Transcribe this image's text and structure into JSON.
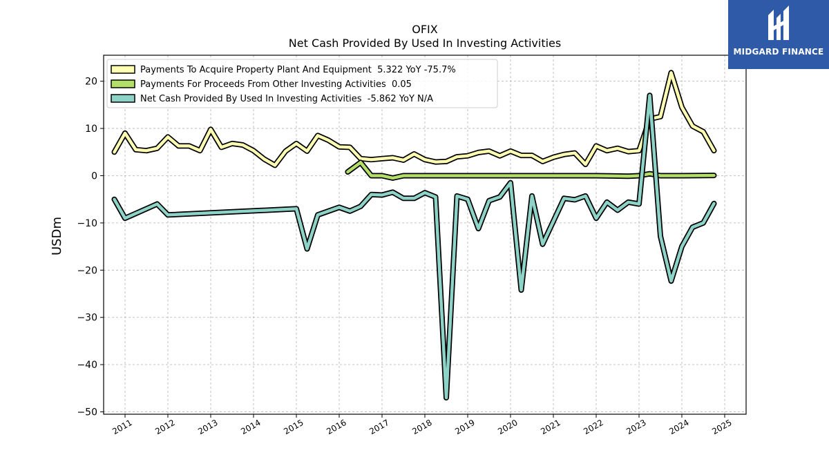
{
  "brand": {
    "name": "MIDGARD FINANCE",
    "bg": "#2e5aa8"
  },
  "chart_data": {
    "type": "line",
    "title": "OFIX",
    "subtitle": "Net Cash Provided By Used In Investing Activities",
    "xlabel": "",
    "ylabel": "USDm",
    "xlim": [
      2010.5,
      2025.5
    ],
    "ylim": [
      -50.5,
      25.5
    ],
    "x_ticks": [
      "2011",
      "2012",
      "2013",
      "2014",
      "2015",
      "2016",
      "2017",
      "2018",
      "2019",
      "2020",
      "2021",
      "2022",
      "2023",
      "2024",
      "2025"
    ],
    "y_ticks": [
      20,
      10,
      0,
      -10,
      -20,
      -30,
      -40,
      -50
    ],
    "grid": true,
    "legend_position": "top-left",
    "series": [
      {
        "name": "Payments To Acquire Property Plant And Equipment  5.322 YoY -75.7%",
        "color": "#ffffb3",
        "points": [
          [
            2010.75,
            5.0
          ],
          [
            2011.0,
            9.0
          ],
          [
            2011.25,
            5.5
          ],
          [
            2011.5,
            5.3
          ],
          [
            2011.75,
            5.8
          ],
          [
            2012.0,
            8.2
          ],
          [
            2012.25,
            6.3
          ],
          [
            2012.5,
            6.3
          ],
          [
            2012.75,
            5.3
          ],
          [
            2013.0,
            9.8
          ],
          [
            2013.25,
            6.0
          ],
          [
            2013.5,
            6.8
          ],
          [
            2013.75,
            6.5
          ],
          [
            2014.0,
            5.3
          ],
          [
            2014.25,
            3.5
          ],
          [
            2014.5,
            2.2
          ],
          [
            2014.75,
            5.2
          ],
          [
            2015.0,
            6.8
          ],
          [
            2015.25,
            5.2
          ],
          [
            2015.5,
            8.5
          ],
          [
            2015.75,
            7.5
          ],
          [
            2016.0,
            6.1
          ],
          [
            2016.25,
            6.0
          ],
          [
            2016.5,
            3.6
          ],
          [
            2016.75,
            3.4
          ],
          [
            2017.0,
            3.6
          ],
          [
            2017.25,
            3.8
          ],
          [
            2017.5,
            3.3
          ],
          [
            2017.75,
            4.6
          ],
          [
            2018.0,
            3.4
          ],
          [
            2018.25,
            2.9
          ],
          [
            2018.5,
            3.0
          ],
          [
            2018.75,
            4.0
          ],
          [
            2019.0,
            4.2
          ],
          [
            2019.25,
            4.9
          ],
          [
            2019.5,
            5.2
          ],
          [
            2019.75,
            4.2
          ],
          [
            2020.0,
            5.2
          ],
          [
            2020.25,
            4.3
          ],
          [
            2020.5,
            4.3
          ],
          [
            2020.75,
            3.0
          ],
          [
            2021.0,
            3.9
          ],
          [
            2021.25,
            4.5
          ],
          [
            2021.5,
            4.8
          ],
          [
            2021.75,
            2.4
          ],
          [
            2022.0,
            6.3
          ],
          [
            2022.25,
            5.3
          ],
          [
            2022.5,
            5.8
          ],
          [
            2022.75,
            5.1
          ],
          [
            2023.0,
            5.3
          ],
          [
            2023.25,
            12.0
          ],
          [
            2023.5,
            12.5
          ],
          [
            2023.75,
            21.8
          ],
          [
            2024.0,
            14.5
          ],
          [
            2024.25,
            10.5
          ],
          [
            2024.5,
            9.3
          ],
          [
            2024.75,
            5.3
          ]
        ]
      },
      {
        "name": "Payments For Proceeds From Other Investing Activities  0.05",
        "color": "#b3de69",
        "points": [
          [
            2016.2,
            0.8
          ],
          [
            2016.5,
            2.8
          ],
          [
            2016.75,
            0.0
          ],
          [
            2017.0,
            0.0
          ],
          [
            2017.25,
            -0.5
          ],
          [
            2017.5,
            0.0
          ],
          [
            2018.0,
            0.0
          ],
          [
            2019.0,
            0.0
          ],
          [
            2020.0,
            0.0
          ],
          [
            2021.0,
            0.0
          ],
          [
            2022.0,
            0.0
          ],
          [
            2022.75,
            -0.1
          ],
          [
            2023.0,
            0.0
          ],
          [
            2023.25,
            0.4
          ],
          [
            2023.5,
            0.0
          ],
          [
            2024.0,
            0.0
          ],
          [
            2024.75,
            0.05
          ]
        ]
      },
      {
        "name": "Net Cash Provided By Used In Investing Activities  -5.862 YoY N/A",
        "color": "#8dd3c7",
        "points": [
          [
            2010.75,
            -5.0
          ],
          [
            2011.0,
            -9.0
          ],
          [
            2011.75,
            -6.0
          ],
          [
            2012.0,
            -8.3
          ],
          [
            2015.0,
            -7.0
          ],
          [
            2015.25,
            -15.5
          ],
          [
            2015.5,
            -8.3
          ],
          [
            2016.0,
            -6.7
          ],
          [
            2016.25,
            -7.5
          ],
          [
            2016.5,
            -6.5
          ],
          [
            2016.75,
            -4.0
          ],
          [
            2017.0,
            -4.1
          ],
          [
            2017.25,
            -3.5
          ],
          [
            2017.5,
            -4.8
          ],
          [
            2017.75,
            -4.8
          ],
          [
            2018.0,
            -3.6
          ],
          [
            2018.25,
            -4.5
          ],
          [
            2018.5,
            -47.0
          ],
          [
            2018.75,
            -4.3
          ],
          [
            2019.0,
            -5.0
          ],
          [
            2019.25,
            -11.2
          ],
          [
            2019.5,
            -5.3
          ],
          [
            2019.75,
            -4.5
          ],
          [
            2020.0,
            -1.5
          ],
          [
            2020.25,
            -24.2
          ],
          [
            2020.5,
            -4.3
          ],
          [
            2020.75,
            -14.5
          ],
          [
            2021.25,
            -4.8
          ],
          [
            2021.5,
            -5.1
          ],
          [
            2021.75,
            -4.3
          ],
          [
            2022.0,
            -9.0
          ],
          [
            2022.25,
            -5.6
          ],
          [
            2022.5,
            -7.3
          ],
          [
            2022.75,
            -5.6
          ],
          [
            2023.0,
            -6.0
          ],
          [
            2023.25,
            17.0
          ],
          [
            2023.5,
            -12.8
          ],
          [
            2023.75,
            -22.3
          ],
          [
            2024.0,
            -15.0
          ],
          [
            2024.25,
            -10.9
          ],
          [
            2024.5,
            -10.0
          ],
          [
            2024.75,
            -5.9
          ]
        ]
      }
    ]
  }
}
